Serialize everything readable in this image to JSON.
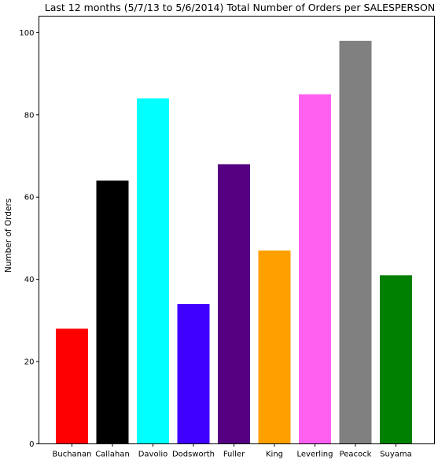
{
  "chart_data": {
    "type": "bar",
    "title": "Last 12 months (5/7/13 to 5/6/2014) Total Number of Orders per SALESPERSON",
    "xlabel": "",
    "ylabel": "Number of Orders",
    "categories": [
      "Buchanan",
      "Callahan",
      "Davolio",
      "Dodsworth",
      "Fuller",
      "King",
      "Leverling",
      "Peacock",
      "Suyama"
    ],
    "values": [
      28,
      64,
      84,
      34,
      68,
      47,
      85,
      98,
      41
    ],
    "colors": [
      "#ff0000",
      "#000000",
      "#00ffff",
      "#4000ff",
      "#550080",
      "#ffa000",
      "#ff60f0",
      "#808080",
      "#008000"
    ],
    "ylim": [
      0,
      104
    ],
    "yticks": [
      0,
      20,
      40,
      60,
      80,
      100
    ],
    "grid": false,
    "legend": "none"
  }
}
